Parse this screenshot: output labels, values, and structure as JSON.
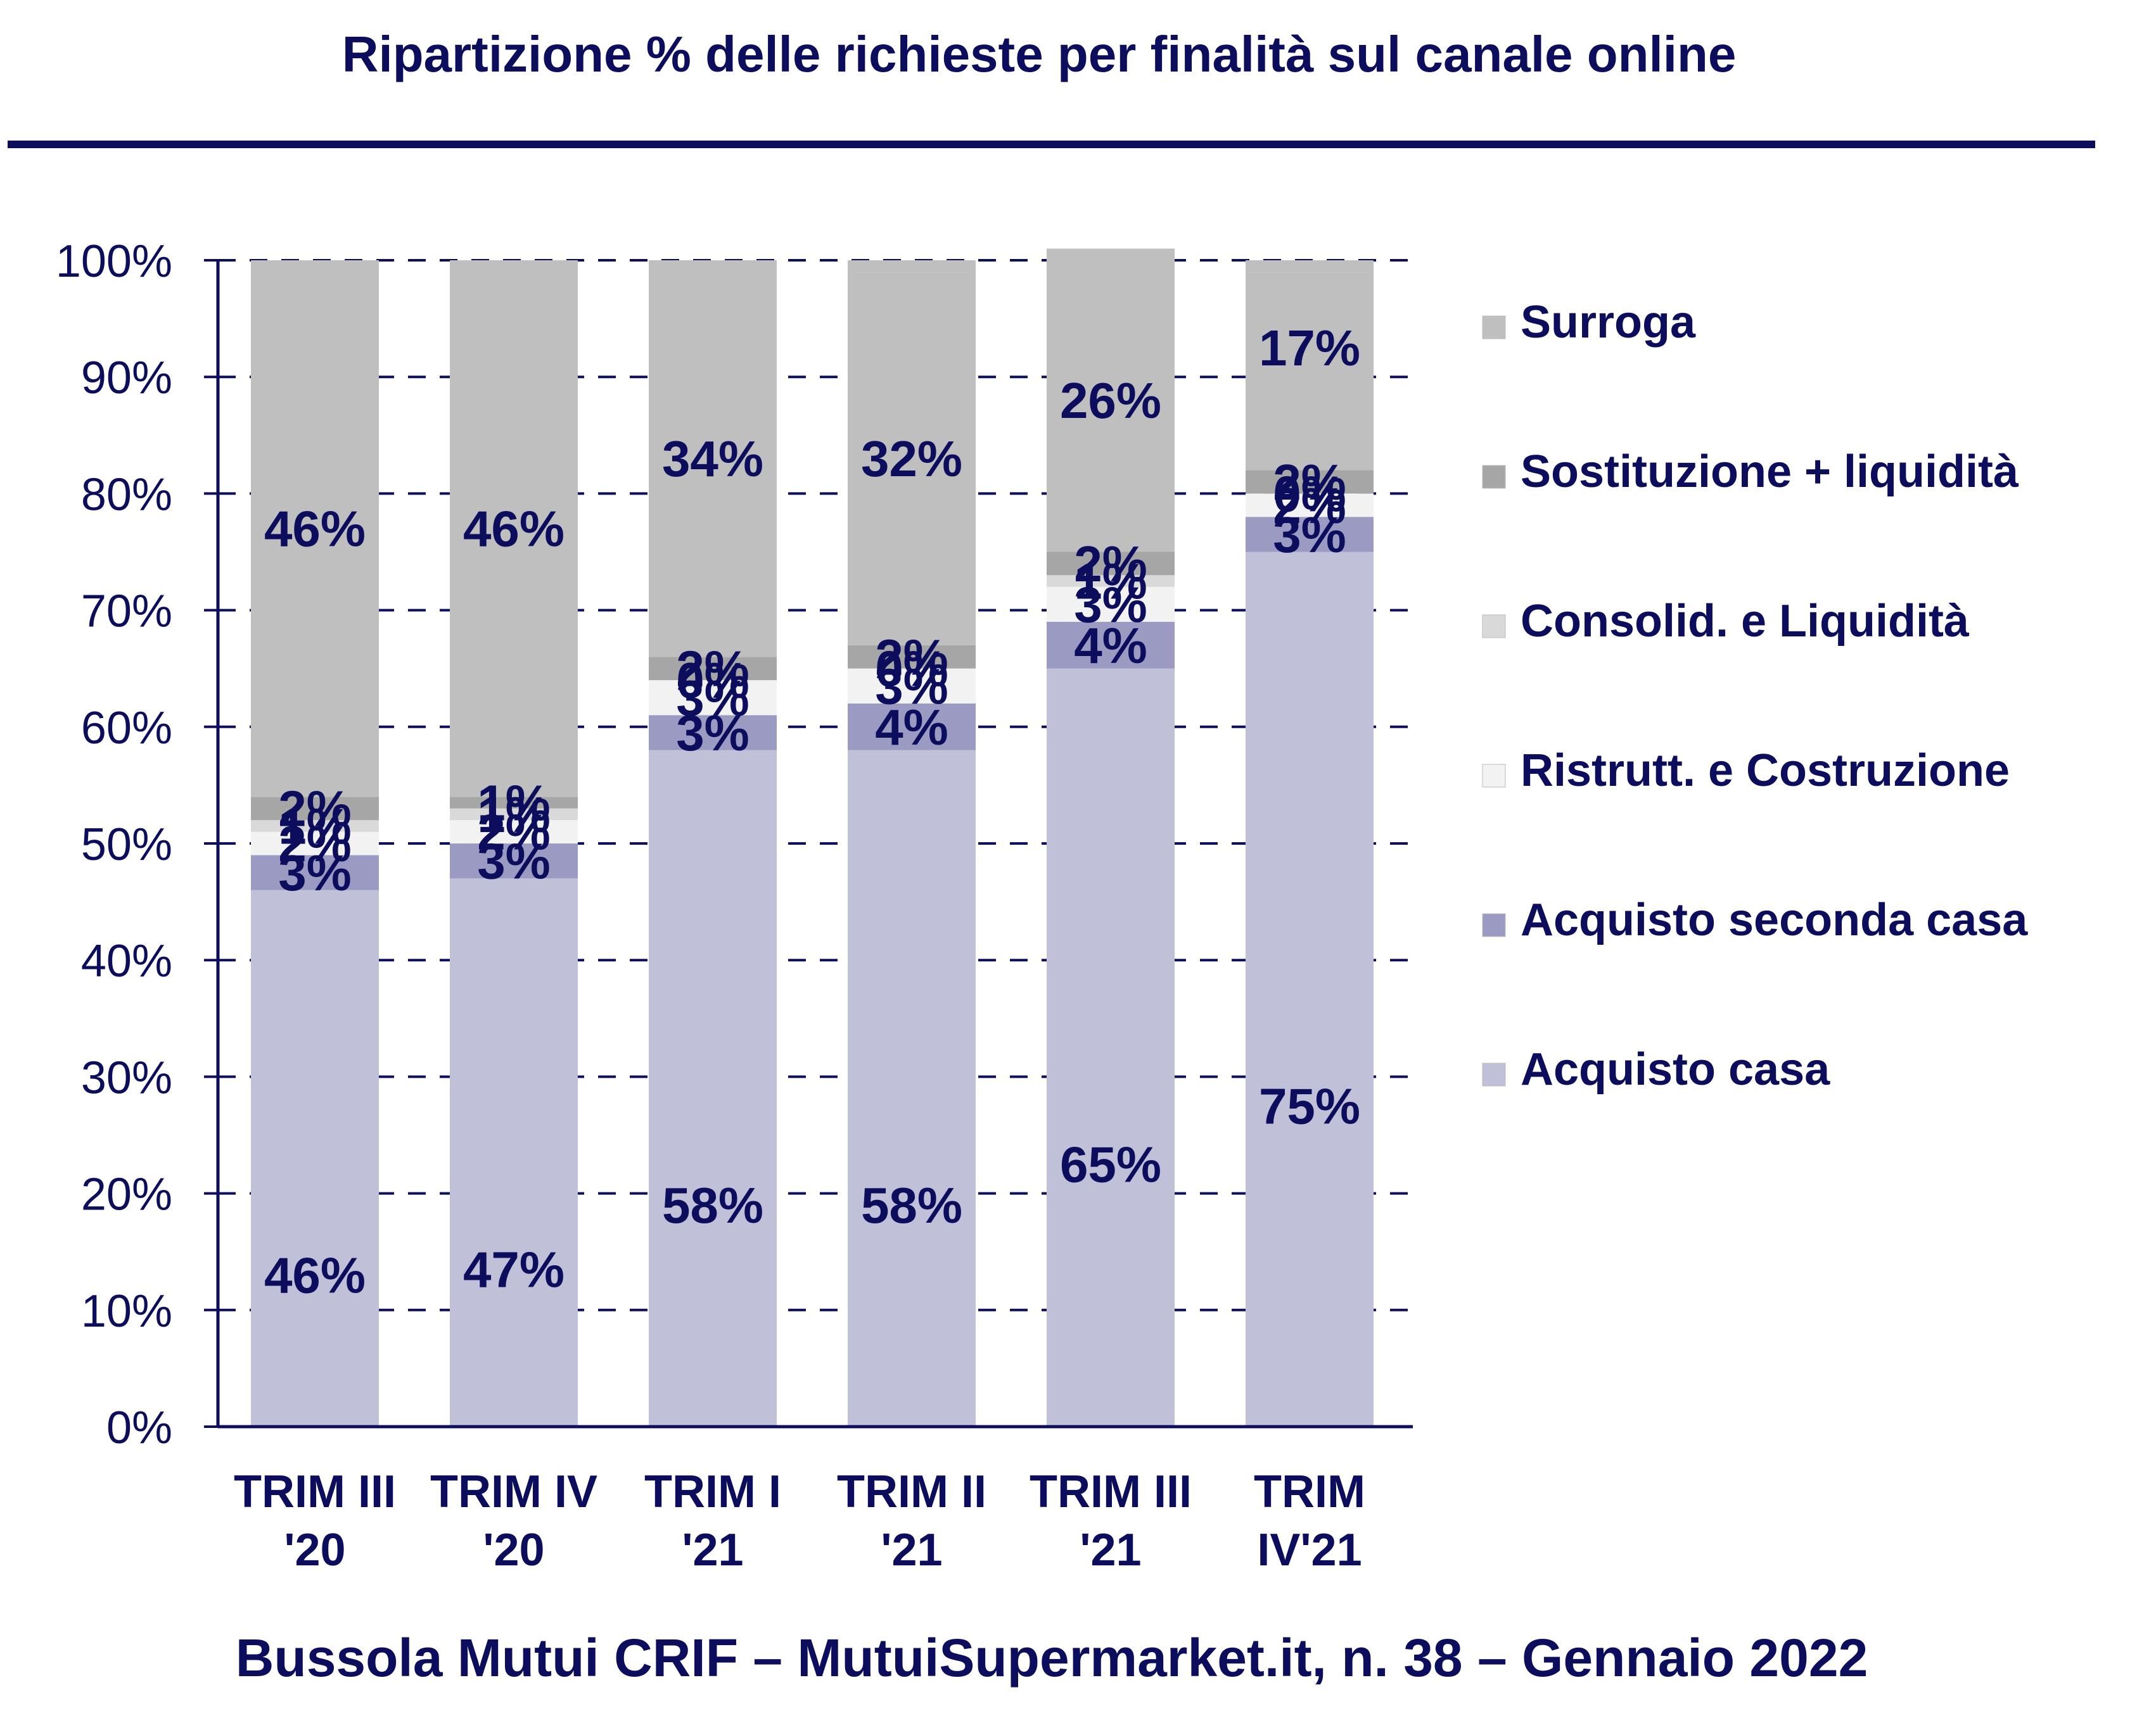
{
  "title": "Ripartizione % delle richieste per finalità sul canale online",
  "footer": "Bussola Mutui CRIF – MutuiSupermarket.it, n. 38 – Gennaio 2022",
  "chart_data": {
    "type": "bar",
    "stacked": true,
    "title": "Ripartizione % delle richieste per finalità sul canale online",
    "xlabel": "",
    "ylabel": "",
    "ylim": [
      0,
      100
    ],
    "yticks": [
      "0%",
      "10%",
      "20%",
      "30%",
      "40%",
      "50%",
      "60%",
      "70%",
      "80%",
      "90%",
      "100%"
    ],
    "grid": true,
    "legend_position": "right",
    "categories": [
      [
        "TRIM III",
        "'20"
      ],
      [
        "TRIM IV",
        "'20"
      ],
      [
        "TRIM I",
        "'21"
      ],
      [
        "TRIM II",
        "'21"
      ],
      [
        "TRIM III",
        "'21"
      ],
      [
        "TRIM",
        "IV'21"
      ]
    ],
    "series": [
      {
        "name": "Acquisto casa",
        "color": "#c0c0d8",
        "values": [
          46,
          47,
          58,
          58,
          65,
          75
        ]
      },
      {
        "name": "Acquisto seconda casa",
        "color": "#9a9ac2",
        "values": [
          3,
          3,
          3,
          4,
          4,
          3
        ]
      },
      {
        "name": "Ristrutt. e Costruzione",
        "color": "#f2f2f2",
        "values": [
          2,
          2,
          3,
          3,
          3,
          2
        ]
      },
      {
        "name": "Consolid. e Liquidità",
        "color": "#d9d9d9",
        "values": [
          1,
          1,
          0,
          0,
          1,
          0
        ]
      },
      {
        "name": "Sostituzione + liquidità",
        "color": "#a6a6a6",
        "values": [
          2,
          1,
          2,
          2,
          2,
          2
        ]
      },
      {
        "name": "Surroga",
        "color": "#bfbfbf",
        "values": [
          46,
          46,
          34,
          32,
          26,
          17
        ]
      }
    ]
  }
}
